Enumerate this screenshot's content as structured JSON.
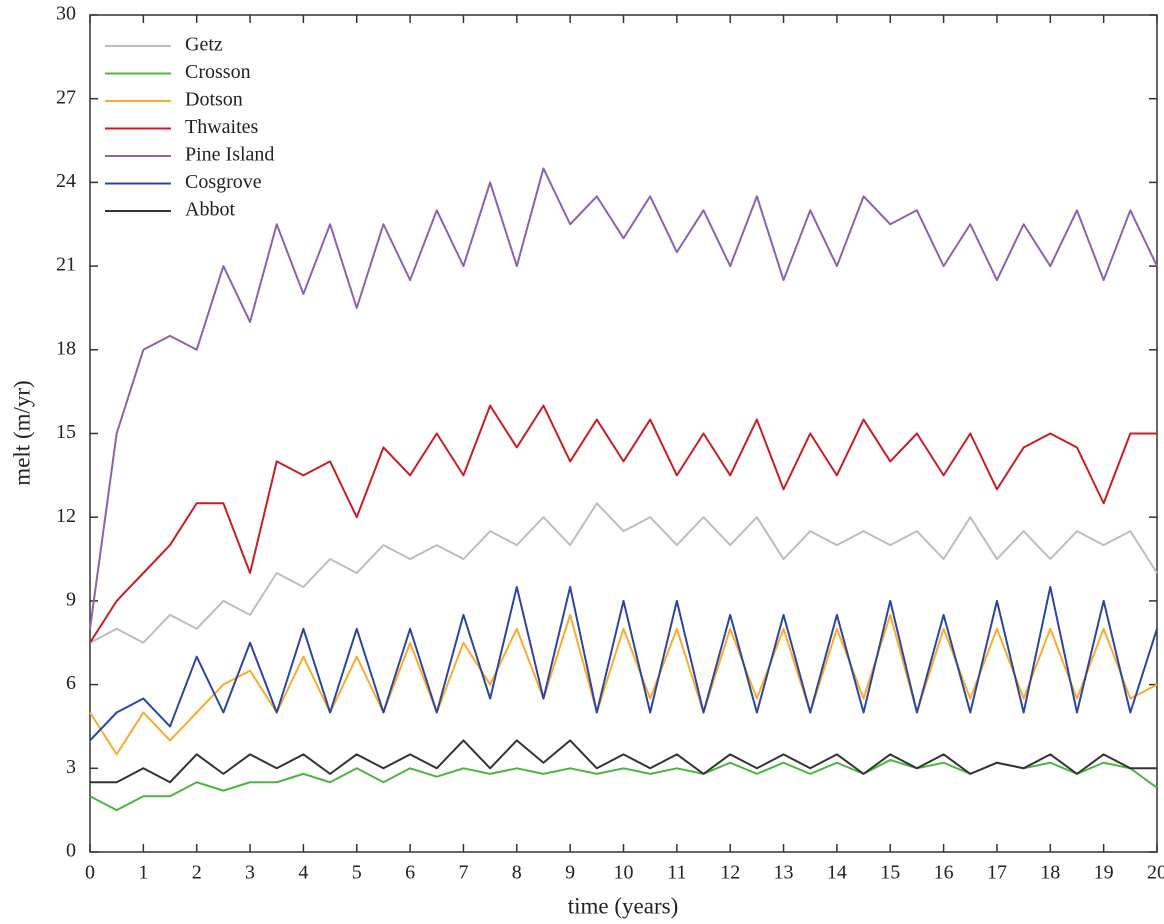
{
  "chart_data": {
    "type": "line",
    "xlabel": "time (years)",
    "ylabel": "melt (m/yr)",
    "xlim": [
      0,
      20
    ],
    "ylim": [
      0,
      30
    ],
    "xticks": [
      0,
      1,
      2,
      3,
      4,
      5,
      6,
      7,
      8,
      9,
      10,
      11,
      12,
      13,
      14,
      15,
      16,
      17,
      18,
      19,
      20
    ],
    "yticks": [
      0,
      3,
      6,
      9,
      12,
      15,
      18,
      21,
      24,
      27,
      30
    ],
    "grid": false,
    "legend": "upper left",
    "x": [
      0,
      0.5,
      1,
      1.5,
      2,
      2.5,
      3,
      3.5,
      4,
      4.5,
      5,
      5.5,
      6,
      6.5,
      7,
      7.5,
      8,
      8.5,
      9,
      9.5,
      10,
      10.5,
      11,
      11.5,
      12,
      12.5,
      13,
      13.5,
      14,
      14.5,
      15,
      15.5,
      16,
      16.5,
      17,
      17.5,
      18,
      18.5,
      19,
      19.5,
      20
    ],
    "series": [
      {
        "name": "Getz",
        "color": "#bdbdbd",
        "values": [
          7.5,
          8,
          7.5,
          8.5,
          8,
          9,
          8.5,
          10,
          9.5,
          10.5,
          10,
          11,
          10.5,
          11,
          10.5,
          11.5,
          11,
          12,
          11,
          12.5,
          11.5,
          12,
          11,
          12,
          11,
          12,
          10.5,
          11.5,
          11,
          11.5,
          11,
          11.5,
          10.5,
          12,
          10.5,
          11.5,
          10.5,
          11.5,
          11,
          11.5,
          10
        ]
      },
      {
        "name": "Crosson",
        "color": "#4db443",
        "values": [
          2,
          1.5,
          2,
          2,
          2.5,
          2.2,
          2.5,
          2.5,
          2.8,
          2.5,
          3,
          2.5,
          3,
          2.7,
          3,
          2.8,
          3,
          2.8,
          3,
          2.8,
          3,
          2.8,
          3,
          2.8,
          3.2,
          2.8,
          3.2,
          2.8,
          3.2,
          2.8,
          3.3,
          3,
          3.2,
          2.8,
          3.2,
          3,
          3.2,
          2.8,
          3.2,
          3,
          2.3
        ]
      },
      {
        "name": "Dotson",
        "color": "#f9ac2f",
        "values": [
          5,
          3.5,
          5,
          4,
          5,
          6,
          6.5,
          5,
          7,
          5,
          7,
          5,
          7.5,
          5,
          7.5,
          6,
          8,
          5.5,
          8.5,
          5,
          8,
          5.5,
          8,
          5,
          8,
          5.5,
          8,
          5,
          8,
          5.5,
          8.5,
          5,
          8,
          5.5,
          8,
          5.5,
          8,
          5.5,
          8,
          5.5,
          6
        ]
      },
      {
        "name": "Thwaites",
        "color": "#c81e27",
        "values": [
          7.5,
          9,
          10,
          11,
          12.5,
          12.5,
          10,
          14,
          13.5,
          14,
          12,
          14.5,
          13.5,
          15,
          13.5,
          16,
          14.5,
          16,
          14,
          15.5,
          14,
          15.5,
          13.5,
          15,
          13.5,
          15.5,
          13,
          15,
          13.5,
          15.5,
          14,
          15,
          13.5,
          15,
          13,
          14.5,
          15,
          14.5,
          12.5,
          15,
          15
        ]
      },
      {
        "name": "Pine Island",
        "color": "#8c62ae",
        "values": [
          8,
          15,
          18,
          18.5,
          18,
          21,
          19,
          22.5,
          20,
          22.5,
          19.5,
          22.5,
          20.5,
          23,
          21,
          24,
          21,
          24.5,
          22.5,
          23.5,
          22,
          23.5,
          21.5,
          23,
          21,
          23.5,
          20.5,
          23,
          21,
          23.5,
          22.5,
          23,
          21,
          22.5,
          20.5,
          22.5,
          21,
          23,
          20.5,
          23,
          21
        ]
      },
      {
        "name": "Cosgrove",
        "color": "#2c46a0",
        "values": [
          4,
          5,
          5.5,
          4.5,
          7,
          5,
          7.5,
          5,
          8,
          5,
          8,
          5,
          8,
          5,
          8.5,
          5.5,
          9.5,
          5.5,
          9.5,
          5,
          9,
          5,
          9,
          5,
          8.5,
          5,
          8.5,
          5,
          8.5,
          5,
          9,
          5,
          8.5,
          5,
          9,
          5,
          9.5,
          5,
          9,
          5,
          8
        ]
      },
      {
        "name": "Abbot",
        "color": "#333333",
        "values": [
          2.5,
          2.5,
          3,
          2.5,
          3.5,
          2.8,
          3.5,
          3,
          3.5,
          2.8,
          3.5,
          3,
          3.5,
          3,
          4,
          3,
          4,
          3.2,
          4,
          3,
          3.5,
          3,
          3.5,
          2.8,
          3.5,
          3,
          3.5,
          3,
          3.5,
          2.8,
          3.5,
          3,
          3.5,
          2.8,
          3.2,
          3,
          3.5,
          2.8,
          3.5,
          3,
          3
        ]
      }
    ]
  }
}
